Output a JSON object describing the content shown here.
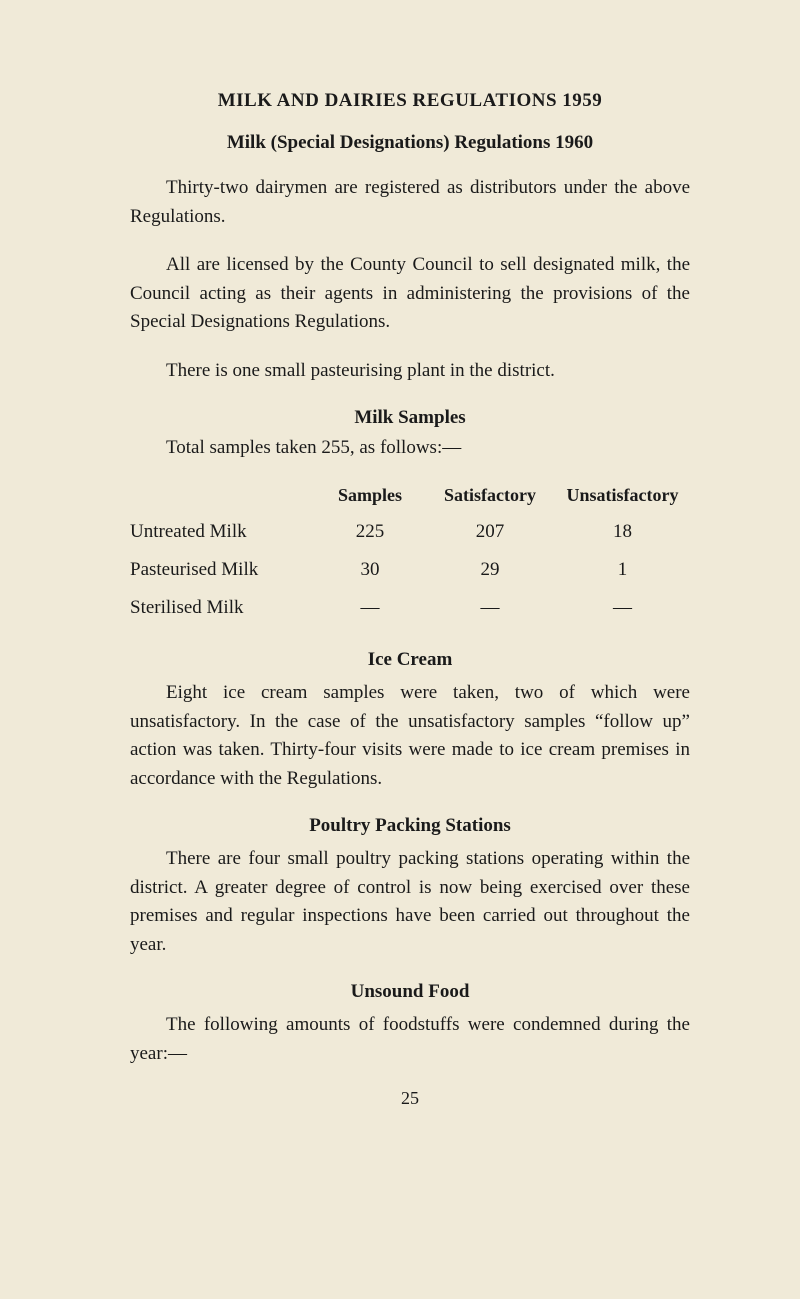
{
  "title_main": "MILK AND DAIRIES REGULATIONS 1959",
  "title_sub": "Milk (Special Designations) Regulations 1960",
  "para1": "Thirty-two dairymen are registered as distributors under the above Regulations.",
  "para2": "All are licensed by the County Council to sell designated milk, the Council acting as their agents in administering the provisions of the Special Designations Regulations.",
  "para3": "There is one small pasteurising plant in the district.",
  "milk_samples_head": "Milk Samples",
  "samples_line": "Total samples taken 255, as follows:—",
  "table": {
    "header": {
      "label": "",
      "samples": "Samples",
      "sat": "Satisfactory",
      "unsat": "Unsatisfactory"
    },
    "rows": [
      {
        "label": "Untreated Milk",
        "samples": "225",
        "sat": "207",
        "unsat": "18"
      },
      {
        "label": "Pasteurised Milk",
        "samples": "30",
        "sat": "29",
        "unsat": "1"
      },
      {
        "label": "Sterilised Milk",
        "samples": "—",
        "sat": "—",
        "unsat": "—"
      }
    ]
  },
  "ice_cream_head": "Ice Cream",
  "ice_cream_para": "Eight ice cream samples were taken, two of which were unsatisfactory. In the case of the unsatisfactory samples “follow up” action was taken. Thirty-four visits were made to ice cream premises in accordance with the Regulations.",
  "poultry_head": "Poultry Packing Stations",
  "poultry_para": "There are four small poultry packing stations operating within the district. A greater degree of control is now being exercised over these premises and regular inspections have been carried out throughout the year.",
  "unsound_head": "Unsound Food",
  "unsound_para": "The following amounts of foodstuffs were condemned during the year:—",
  "page_number": "25"
}
